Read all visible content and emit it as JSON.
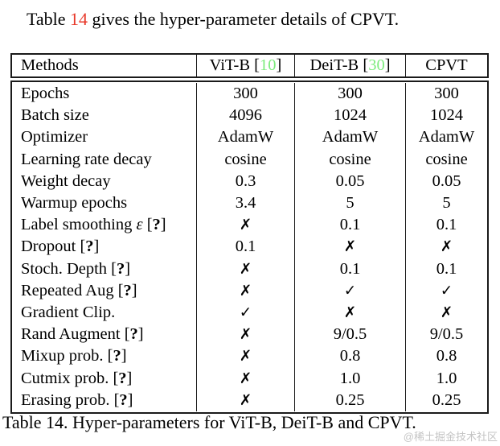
{
  "intro": {
    "text_before_ref": "Table ",
    "ref_number": "14",
    "text_after_ref": " gives the hyper-parameter details of CPVT."
  },
  "table": {
    "header": {
      "methods_label": "Methods",
      "columns": [
        {
          "label": "ViT-B",
          "cite": "10"
        },
        {
          "label": "DeiT-B",
          "cite": "30"
        },
        {
          "label": "CPVT",
          "cite": ""
        }
      ]
    },
    "rows": [
      {
        "label": "Epochs",
        "values": [
          "300",
          "300",
          "300"
        ]
      },
      {
        "label": "Batch size",
        "values": [
          "4096",
          "1024",
          "1024"
        ]
      },
      {
        "label": "Optimizer",
        "values": [
          "AdamW",
          "AdamW",
          "AdamW"
        ]
      },
      {
        "label": "Learning rate decay",
        "values": [
          "cosine",
          "cosine",
          "cosine"
        ]
      },
      {
        "label": "Weight decay",
        "values": [
          "0.3",
          "0.05",
          "0.05"
        ]
      },
      {
        "label": "Warmup epochs",
        "values": [
          "3.4",
          "5",
          "5"
        ]
      },
      {
        "label": "Label smoothing ε [?]",
        "values": [
          "✗",
          "0.1",
          "0.1"
        ]
      },
      {
        "label": "Dropout [?]",
        "values": [
          "0.1",
          "✗",
          "✗"
        ]
      },
      {
        "label": "Stoch. Depth [?]",
        "values": [
          "✗",
          "0.1",
          "0.1"
        ]
      },
      {
        "label": "Repeated Aug [?]",
        "values": [
          "✗",
          "✓",
          "✓"
        ]
      },
      {
        "label": "Gradient Clip.",
        "values": [
          "✓",
          "✗",
          "✗"
        ]
      },
      {
        "label": "Rand Augment [?]",
        "values": [
          "✗",
          "9/0.5",
          "9/0.5"
        ]
      },
      {
        "label": "Mixup prob. [?]",
        "values": [
          "✗",
          "0.8",
          "0.8"
        ]
      },
      {
        "label": "Cutmix prob. [?]",
        "values": [
          "✗",
          "1.0",
          "1.0"
        ]
      },
      {
        "label": "Erasing prob. [?]",
        "values": [
          "✗",
          "0.25",
          "0.25"
        ]
      }
    ]
  },
  "caption": "Table 14. Hyper-parameters for ViT-B, DeiT-B and CPVT.",
  "watermark": "@稀土掘金技术社区",
  "colors": {
    "reference_red": "#e8392a",
    "citation_green": "#7dec7d",
    "watermark_gray": "#c4c4c4",
    "border_black": "#1a1a1a"
  }
}
